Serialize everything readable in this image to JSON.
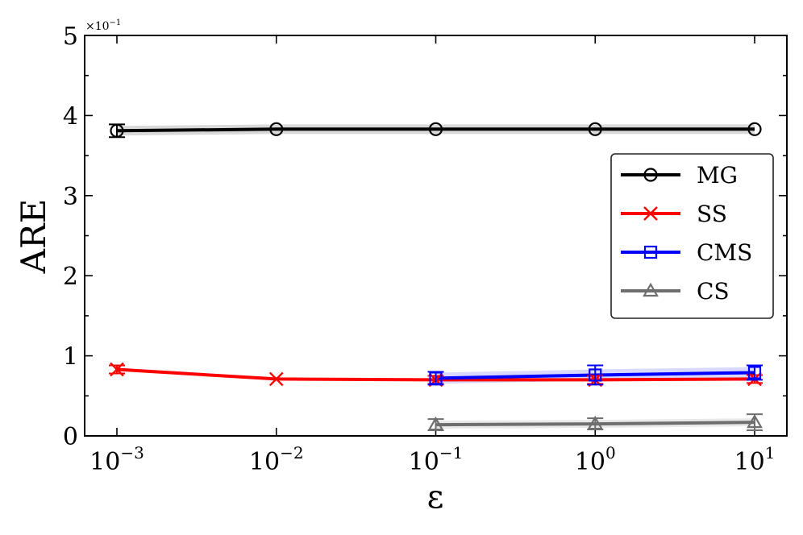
{
  "chart_data": {
    "type": "line",
    "xlabel": "ε",
    "ylabel": "ARE",
    "x_scale": "log",
    "x": [
      0.001,
      0.01,
      0.1,
      1,
      10
    ],
    "x_tick_labels": [
      {
        "base": "10",
        "exp": "−3"
      },
      {
        "base": "10",
        "exp": "−2"
      },
      {
        "base": "10",
        "exp": "−1"
      },
      {
        "base": "10",
        "exp": "0"
      },
      {
        "base": "10",
        "exp": "1"
      }
    ],
    "y_tick_labels": [
      "0",
      "1",
      "2",
      "3",
      "4",
      "5"
    ],
    "y_offset_label": {
      "base": "×10",
      "exp": "−1"
    },
    "ylim": [
      0,
      5
    ],
    "legend_position": "center-right",
    "series": [
      {
        "name": "MG",
        "color": "#000000",
        "marker": "circle",
        "x": [
          0.001,
          0.01,
          0.1,
          1,
          10
        ],
        "values": [
          3.81,
          3.83,
          3.83,
          3.83,
          3.83
        ],
        "err": [
          0.08,
          0.0,
          0.0,
          0.0,
          0.0
        ],
        "band": 0.06
      },
      {
        "name": "SS",
        "color": "#ff0000",
        "marker": "x",
        "x": [
          0.001,
          0.01,
          0.1,
          1,
          10
        ],
        "values": [
          0.83,
          0.71,
          0.7,
          0.7,
          0.71
        ],
        "err": [
          0.05,
          0.0,
          0.05,
          0.05,
          0.05
        ],
        "band": 0.0
      },
      {
        "name": "CMS",
        "color": "#0000ff",
        "marker": "square",
        "x": [
          0.1,
          1,
          10
        ],
        "values": [
          0.72,
          0.76,
          0.79
        ],
        "err": [
          0.08,
          0.12,
          0.09
        ],
        "band": 0.07
      },
      {
        "name": "CS",
        "color": "#6e6e6e",
        "marker": "triangle",
        "x": [
          0.1,
          1,
          10
        ],
        "values": [
          0.14,
          0.15,
          0.17
        ],
        "err": [
          0.07,
          0.07,
          0.1
        ],
        "band": 0.05
      }
    ]
  }
}
